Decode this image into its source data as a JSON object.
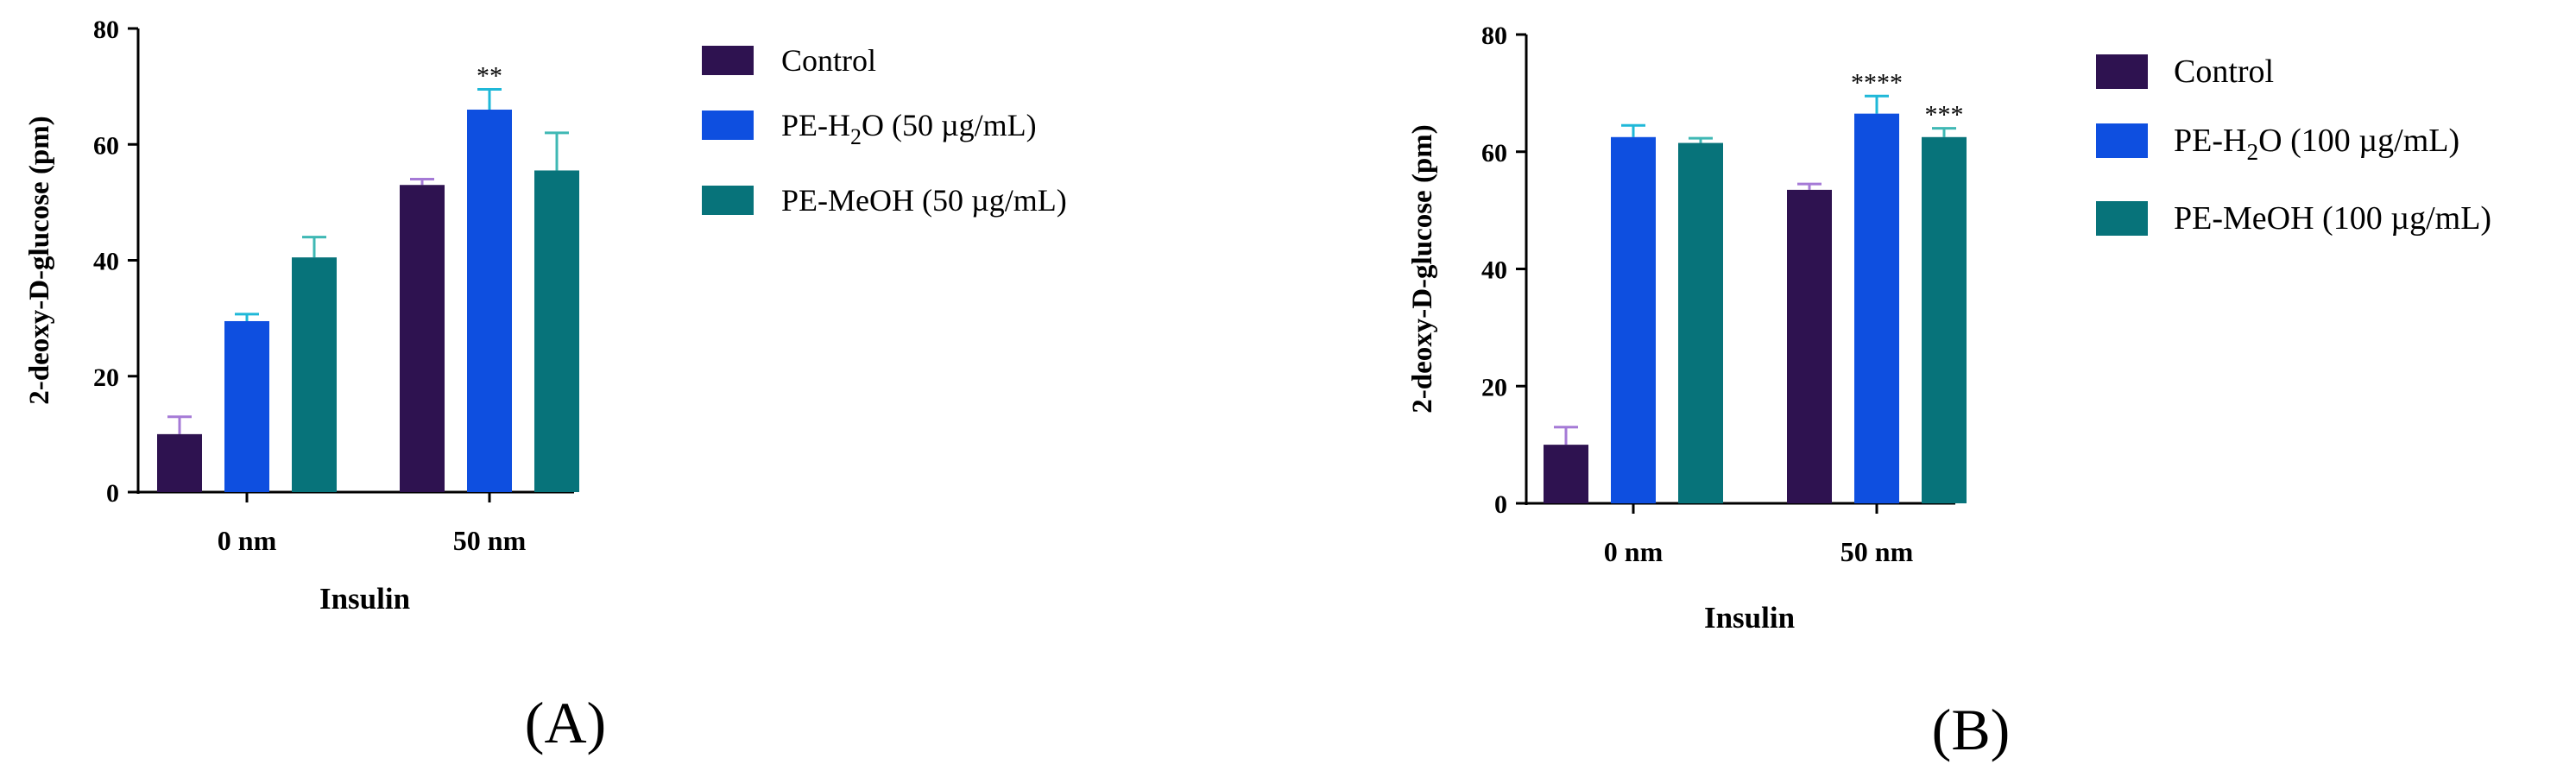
{
  "colors": {
    "control": "#2e1250",
    "pe_h2o": "#0e4fe0",
    "pe_meoh": "#07737a",
    "control_err": "#a57ad6",
    "pe_h2o_err": "#1fb8d8",
    "pe_meoh_err": "#3fb8b4",
    "axis": "#000000"
  },
  "chart_data": [
    {
      "panel_label": "(A)",
      "type": "bar",
      "xlabel": "Insulin",
      "ylabel": "2-deoxy-D-glucose (pm)",
      "ylim": [
        0,
        80
      ],
      "yticks": [
        0,
        20,
        40,
        60,
        80
      ],
      "categories": [
        "0 nm",
        "50 nm"
      ],
      "series": [
        {
          "name": "Control",
          "values": [
            10,
            53
          ],
          "errors": [
            3,
            1
          ]
        },
        {
          "name": "PE-H2O (50 µg/mL)",
          "legend_main": "PE-H",
          "legend_sub": "2",
          "legend_rest": "O (50 µg/mL)",
          "values": [
            29.5,
            66
          ],
          "errors": [
            1.2,
            3.5
          ]
        },
        {
          "name": "PE-MeOH (50 µg/mL)",
          "values": [
            40.5,
            55.5
          ],
          "errors": [
            3.5,
            6.5
          ]
        }
      ],
      "annotations": [
        {
          "series": 1,
          "category": 1,
          "text": "**"
        }
      ]
    },
    {
      "panel_label": "(B)",
      "type": "bar",
      "xlabel": "Insulin",
      "ylabel": "2-deoxy-D-glucose (pm)",
      "ylim": [
        0,
        80
      ],
      "yticks": [
        0,
        20,
        40,
        60,
        80
      ],
      "categories": [
        "0 nm",
        "50 nm"
      ],
      "series": [
        {
          "name": "Control",
          "values": [
            10,
            53.5
          ],
          "errors": [
            3,
            1
          ]
        },
        {
          "name": "PE-H2O (100 µg/mL)",
          "legend_main": "PE-H",
          "legend_sub": "2",
          "legend_rest": "O (100 µg/mL)",
          "values": [
            62.5,
            66.5
          ],
          "errors": [
            2,
            3
          ]
        },
        {
          "name": "PE-MeOH (100 µg/mL)",
          "values": [
            61.5,
            62.5
          ],
          "errors": [
            0.8,
            1.5
          ]
        }
      ],
      "annotations": [
        {
          "series": 1,
          "category": 1,
          "text": "****"
        },
        {
          "series": 2,
          "category": 1,
          "text": "***"
        }
      ]
    }
  ]
}
